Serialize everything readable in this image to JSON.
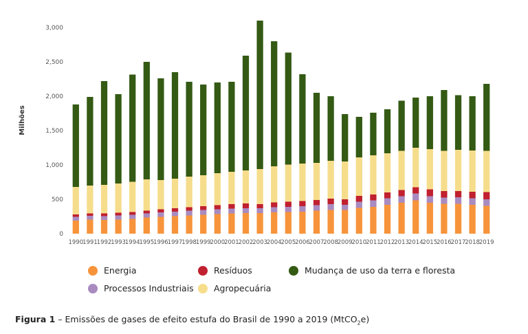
{
  "chart_data": {
    "type": "bar",
    "stacked": true,
    "title": "",
    "xlabel": "",
    "ylabel": "Milhões",
    "ylim": [
      0,
      3000
    ],
    "yticks": [
      0,
      500,
      1000,
      1500,
      2000,
      2500,
      3000
    ],
    "ytick_labels": [
      "0",
      "500",
      "1,000",
      "1,500",
      "2,000",
      "2,500",
      "3,000"
    ],
    "grid": false,
    "legend_position": "bottom",
    "categories": [
      "1990",
      "1991",
      "1992",
      "1993",
      "1994",
      "1995",
      "1996",
      "1997",
      "1998",
      "1999",
      "2000",
      "2001",
      "2002",
      "2003",
      "2004",
      "2005",
      "2006",
      "2007",
      "2008",
      "2009",
      "2010",
      "2011",
      "2012",
      "2013",
      "2014",
      "2015",
      "2016",
      "2017",
      "2018",
      "2019"
    ],
    "series": [
      {
        "name": "Energia",
        "color": "#f7943b",
        "values": [
          190,
          205,
          200,
          205,
          215,
          235,
          245,
          255,
          265,
          275,
          285,
          295,
          300,
          300,
          310,
          315,
          320,
          335,
          345,
          345,
          375,
          390,
          420,
          450,
          485,
          450,
          435,
          435,
          420,
          405
        ]
      },
      {
        "name": "Processos Industriais",
        "color": "#a98bc0",
        "values": [
          55,
          55,
          55,
          60,
          60,
          60,
          65,
          65,
          70,
          70,
          70,
          70,
          70,
          70,
          75,
          75,
          80,
          80,
          85,
          75,
          90,
          95,
          95,
          95,
          100,
          95,
          90,
          95,
          95,
          95
        ]
      },
      {
        "name": "Resíduos",
        "color": "#c0202f",
        "values": [
          35,
          35,
          40,
          40,
          40,
          40,
          45,
          50,
          50,
          55,
          60,
          65,
          70,
          60,
          70,
          75,
          75,
          75,
          80,
          80,
          85,
          85,
          85,
          90,
          90,
          100,
          95,
          90,
          95,
          105
        ]
      },
      {
        "name": "Agropecuária",
        "color": "#f6dd8c",
        "values": [
          400,
          405,
          415,
          425,
          440,
          455,
          425,
          430,
          445,
          450,
          465,
          470,
          480,
          510,
          525,
          540,
          545,
          540,
          550,
          550,
          560,
          570,
          570,
          570,
          575,
          585,
          585,
          600,
          600,
          600
        ]
      },
      {
        "name": "Mudança de uso da terra e floresta",
        "color": "#345a14",
        "values": [
          1200,
          1290,
          1510,
          1300,
          1560,
          1710,
          1480,
          1550,
          1380,
          1320,
          1320,
          1310,
          1670,
          2160,
          1820,
          1630,
          1300,
          1020,
          940,
          690,
          590,
          620,
          640,
          730,
          730,
          770,
          885,
          795,
          790,
          975
        ]
      }
    ]
  },
  "legend": {
    "energia": "Energia",
    "residuos": "Resíduos",
    "mudanca": "Mudança de uso da terra e floresta",
    "processos": "Processos Industriais",
    "agropecuaria": "Agropecuária"
  },
  "caption": {
    "label": "Figura 1",
    "text": "– Emissões de gases de efeito estufa do Brasil de 1990 a 2019 (MtCO",
    "sub": "2",
    "end": "e)"
  }
}
